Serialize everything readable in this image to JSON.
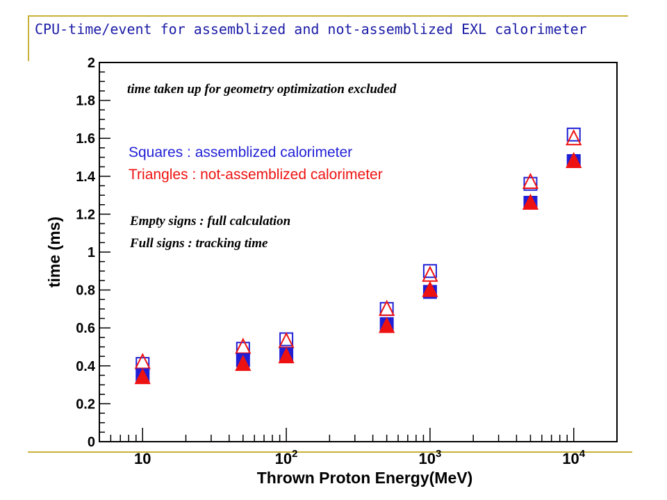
{
  "slide": {
    "title": "CPU-time/event for assemblized and not-assemblized EXL calorimeter"
  },
  "annotations": {
    "geometry_note": "time taken up for geometry optimization excluded",
    "squares_label": "Squares : assemblized calorimeter",
    "triangles_label": "Triangles : not-assemblized calorimeter",
    "empty_label": "Empty signs : full calculation",
    "full_label": "Full signs : tracking time"
  },
  "colors": {
    "title": "#1a1aa6",
    "deco_line": "#c9b037",
    "squares": "#1f1fd6",
    "triangles": "#ee1111"
  },
  "chart_data": {
    "type": "scatter",
    "xlabel": "Thrown Proton Energy(MeV)",
    "ylabel": "time (ms)",
    "xscale": "log",
    "xlim": [
      5,
      20000
    ],
    "ylim": [
      0,
      2
    ],
    "grid": false,
    "x_tick_labels": [
      {
        "value": 10,
        "base": "10",
        "exp": ""
      },
      {
        "value": 100,
        "base": "10",
        "exp": "2"
      },
      {
        "value": 1000,
        "base": "10",
        "exp": "3"
      },
      {
        "value": 10000,
        "base": "10",
        "exp": "4"
      }
    ],
    "y_ticks": [
      0,
      0.2,
      0.4,
      0.6,
      0.8,
      1,
      1.2,
      1.4,
      1.6,
      1.8,
      2
    ],
    "x": [
      10,
      50,
      100,
      500,
      1000,
      5000,
      10000
    ],
    "series": [
      {
        "marker": "open-square",
        "color": "#1f1fd6",
        "values": [
          0.41,
          0.49,
          0.54,
          0.7,
          0.9,
          1.36,
          1.62
        ]
      },
      {
        "marker": "open-triangle",
        "color": "#ee1111",
        "values": [
          0.42,
          0.5,
          0.53,
          0.7,
          0.88,
          1.37,
          1.6
        ]
      },
      {
        "marker": "filled-square",
        "color": "#1f1fd6",
        "values": [
          0.35,
          0.43,
          0.46,
          0.62,
          0.79,
          1.26,
          1.48
        ]
      },
      {
        "marker": "filled-triangle",
        "color": "#ee1111",
        "values": [
          0.34,
          0.41,
          0.45,
          0.61,
          0.8,
          1.26,
          1.48
        ]
      }
    ]
  }
}
